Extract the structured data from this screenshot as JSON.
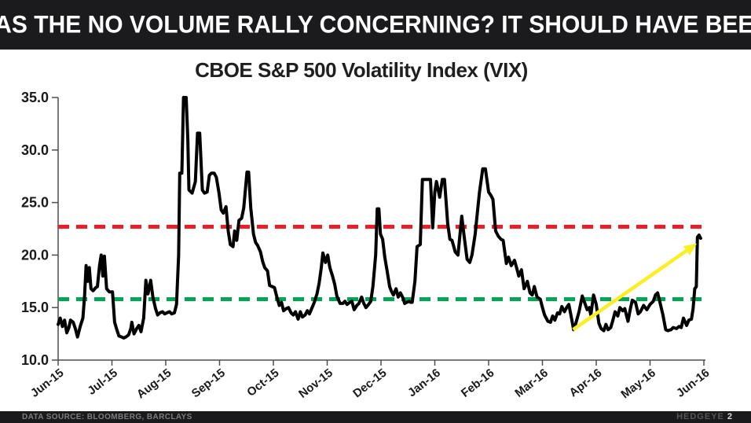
{
  "banner": {
    "title": "WAS THE NO VOLUME RALLY CONCERNING? IT SHOULD HAVE BEEN."
  },
  "footer": {
    "source": "DATA SOURCE: BLOOMBERG, BARCLAYS",
    "brand": "HEDGEYE",
    "page": "2"
  },
  "colors": {
    "banner_bg": "#1b1b1d",
    "line": "#000000",
    "upper_band": "#EC1C24",
    "lower_band": "#00A651",
    "arrow": "#FCEE21",
    "axis": "#4d4d4d",
    "label": "#1a1a1a"
  },
  "chart_data": {
    "type": "line",
    "title": "CBOE S&P 500 Volatility Index (VIX)",
    "xlabel": "",
    "ylabel": "",
    "x_categories": [
      "Jun-15",
      "Jul-15",
      "Aug-15",
      "Sep-15",
      "Oct-15",
      "Nov-15",
      "Dec-15",
      "Jan-16",
      "Feb-16",
      "Mar-16",
      "Apr-16",
      "May-16",
      "Jun-16"
    ],
    "ylim": [
      10.0,
      35.0
    ],
    "yticks": [
      10.0,
      15.0,
      20.0,
      25.0,
      30.0,
      35.0
    ],
    "grid": false,
    "legend": null,
    "thresholds": [
      {
        "name": "upper-risk-band",
        "value": 22.7,
        "style": "dashed",
        "color": "#EC1C24"
      },
      {
        "name": "lower-risk-band",
        "value": 15.8,
        "style": "dashed",
        "color": "#00A651"
      }
    ],
    "annotation_arrow": {
      "from": [
        9.57,
        12.9
      ],
      "to": [
        11.87,
        21.1
      ],
      "color": "#FCEE21"
    },
    "series": [
      {
        "name": "VIX",
        "color": "#000000",
        "points": [
          [
            0,
            13.4
          ],
          [
            0.04,
            14.0
          ],
          [
            0.08,
            13.2
          ],
          [
            0.12,
            13.8
          ],
          [
            0.16,
            12.6
          ],
          [
            0.2,
            13.1
          ],
          [
            0.23,
            13.8
          ],
          [
            0.28,
            13.6
          ],
          [
            0.32,
            13.0
          ],
          [
            0.36,
            12.2
          ],
          [
            0.41,
            13.2
          ],
          [
            0.46,
            14.0
          ],
          [
            0.49,
            16.0
          ],
          [
            0.52,
            19.0
          ],
          [
            0.55,
            17.5
          ],
          [
            0.58,
            18.8
          ],
          [
            0.61,
            16.8
          ],
          [
            0.65,
            16.6
          ],
          [
            0.7,
            16.9
          ],
          [
            0.73,
            17.0
          ],
          [
            0.77,
            19.0
          ],
          [
            0.8,
            20.0
          ],
          [
            0.83,
            18.0
          ],
          [
            0.86,
            19.9
          ],
          [
            0.9,
            16.8
          ],
          [
            0.95,
            16.5
          ],
          [
            1.01,
            16.5
          ],
          [
            1.05,
            13.6
          ],
          [
            1.09,
            12.9
          ],
          [
            1.13,
            12.3
          ],
          [
            1.18,
            12.2
          ],
          [
            1.22,
            12.1
          ],
          [
            1.26,
            12.2
          ],
          [
            1.31,
            12.4
          ],
          [
            1.35,
            13.0
          ],
          [
            1.37,
            13.6
          ],
          [
            1.41,
            12.5
          ],
          [
            1.46,
            13.0
          ],
          [
            1.5,
            13.3
          ],
          [
            1.54,
            12.7
          ],
          [
            1.59,
            14.0
          ],
          [
            1.63,
            17.6
          ],
          [
            1.67,
            16.3
          ],
          [
            1.72,
            17.6
          ],
          [
            1.76,
            16.0
          ],
          [
            1.81,
            14.9
          ],
          [
            1.85,
            14.3
          ],
          [
            1.89,
            14.5
          ],
          [
            1.94,
            14.6
          ],
          [
            1.98,
            14.4
          ],
          [
            2.02,
            14.5
          ],
          [
            2.07,
            14.6
          ],
          [
            2.11,
            14.4
          ],
          [
            2.16,
            14.5
          ],
          [
            2.2,
            15.3
          ],
          [
            2.24,
            20.0
          ],
          [
            2.26,
            27.8
          ],
          [
            2.3,
            27.8
          ],
          [
            2.33,
            35.0
          ],
          [
            2.38,
            35.0
          ],
          [
            2.41,
            31.0
          ],
          [
            2.43,
            26.2
          ],
          [
            2.49,
            25.9
          ],
          [
            2.55,
            27.0
          ],
          [
            2.59,
            31.6
          ],
          [
            2.63,
            31.6
          ],
          [
            2.68,
            26.2
          ],
          [
            2.72,
            25.9
          ],
          [
            2.77,
            26.0
          ],
          [
            2.81,
            27.6
          ],
          [
            2.85,
            27.8
          ],
          [
            2.9,
            27.8
          ],
          [
            2.94,
            27.4
          ],
          [
            2.99,
            25.9
          ],
          [
            3.03,
            24.3
          ],
          [
            3.07,
            24.0
          ],
          [
            3.12,
            24.6
          ],
          [
            3.16,
            22.3
          ],
          [
            3.2,
            21.0
          ],
          [
            3.25,
            20.8
          ],
          [
            3.28,
            22.3
          ],
          [
            3.32,
            21.4
          ],
          [
            3.36,
            23.3
          ],
          [
            3.41,
            23.5
          ],
          [
            3.45,
            24.5
          ],
          [
            3.51,
            27.9
          ],
          [
            3.54,
            27.9
          ],
          [
            3.58,
            24.5
          ],
          [
            3.63,
            22.0
          ],
          [
            3.67,
            21.2
          ],
          [
            3.71,
            20.9
          ],
          [
            3.76,
            20.3
          ],
          [
            3.8,
            19.4
          ],
          [
            3.84,
            18.8
          ],
          [
            3.89,
            18.5
          ],
          [
            3.93,
            17.1
          ],
          [
            3.98,
            17.0
          ],
          [
            4.02,
            16.9
          ],
          [
            4.06,
            16.1
          ],
          [
            4.11,
            15.2
          ],
          [
            4.15,
            15.5
          ],
          [
            4.19,
            14.7
          ],
          [
            4.24,
            14.9
          ],
          [
            4.28,
            15.0
          ],
          [
            4.33,
            14.5
          ],
          [
            4.37,
            14.3
          ],
          [
            4.41,
            14.6
          ],
          [
            4.46,
            13.9
          ],
          [
            4.5,
            14.6
          ],
          [
            4.54,
            14.1
          ],
          [
            4.59,
            14.3
          ],
          [
            4.63,
            14.7
          ],
          [
            4.67,
            14.4
          ],
          [
            4.72,
            15.0
          ],
          [
            4.76,
            15.5
          ],
          [
            4.81,
            16.3
          ],
          [
            4.85,
            17.3
          ],
          [
            4.89,
            18.8
          ],
          [
            4.92,
            20.2
          ],
          [
            4.97,
            19.3
          ],
          [
            5.01,
            20.0
          ],
          [
            5.05,
            18.8
          ],
          [
            5.1,
            18.0
          ],
          [
            5.14,
            17.2
          ],
          [
            5.18,
            16.1
          ],
          [
            5.24,
            15.4
          ],
          [
            5.29,
            15.4
          ],
          [
            5.33,
            15.6
          ],
          [
            5.37,
            15.3
          ],
          [
            5.42,
            15.5
          ],
          [
            5.46,
            15.6
          ],
          [
            5.5,
            14.8
          ],
          [
            5.55,
            15.2
          ],
          [
            5.59,
            15.4
          ],
          [
            5.64,
            16.0
          ],
          [
            5.68,
            15.4
          ],
          [
            5.72,
            15.0
          ],
          [
            5.77,
            15.3
          ],
          [
            5.81,
            15.6
          ],
          [
            5.85,
            17.0
          ],
          [
            5.9,
            20.0
          ],
          [
            5.93,
            24.4
          ],
          [
            5.96,
            24.4
          ],
          [
            5.99,
            22.0
          ],
          [
            6.03,
            21.5
          ],
          [
            6.07,
            19.8
          ],
          [
            6.12,
            18.3
          ],
          [
            6.16,
            17.0
          ],
          [
            6.19,
            16.6
          ],
          [
            6.23,
            16.2
          ],
          [
            6.28,
            16.8
          ],
          [
            6.32,
            16.0
          ],
          [
            6.36,
            16.4
          ],
          [
            6.41,
            15.9
          ],
          [
            6.44,
            15.4
          ],
          [
            6.48,
            15.5
          ],
          [
            6.52,
            15.6
          ],
          [
            6.55,
            15.5
          ],
          [
            6.58,
            15.5
          ],
          [
            6.63,
            17.5
          ],
          [
            6.67,
            20.8
          ],
          [
            6.73,
            21.0
          ],
          [
            6.77,
            27.2
          ],
          [
            6.84,
            27.2
          ],
          [
            6.92,
            27.2
          ],
          [
            6.96,
            22.6
          ],
          [
            7.0,
            26.0
          ],
          [
            7.03,
            27.0
          ],
          [
            7.09,
            25.5
          ],
          [
            7.14,
            27.2
          ],
          [
            7.18,
            27.2
          ],
          [
            7.24,
            23.0
          ],
          [
            7.28,
            21.5
          ],
          [
            7.32,
            21.4
          ],
          [
            7.38,
            20.3
          ],
          [
            7.43,
            20.0
          ],
          [
            7.5,
            23.7
          ],
          [
            7.54,
            22.0
          ],
          [
            7.6,
            19.6
          ],
          [
            7.65,
            19.3
          ],
          [
            7.69,
            20.0
          ],
          [
            7.75,
            22.0
          ],
          [
            7.79,
            24.0
          ],
          [
            7.83,
            26.0
          ],
          [
            7.89,
            28.2
          ],
          [
            7.94,
            28.2
          ],
          [
            8.0,
            26.0
          ],
          [
            8.04,
            25.7
          ],
          [
            8.08,
            25.3
          ],
          [
            8.13,
            22.3
          ],
          [
            8.18,
            21.8
          ],
          [
            8.23,
            21.5
          ],
          [
            8.27,
            21.4
          ],
          [
            8.33,
            19.2
          ],
          [
            8.37,
            19.8
          ],
          [
            8.42,
            19.0
          ],
          [
            8.48,
            19.5
          ],
          [
            8.52,
            18.8
          ],
          [
            8.56,
            18.0
          ],
          [
            8.61,
            18.6
          ],
          [
            8.66,
            16.8
          ],
          [
            8.72,
            17.5
          ],
          [
            8.77,
            16.4
          ],
          [
            8.81,
            16.2
          ],
          [
            8.85,
            17.0
          ],
          [
            8.9,
            16.0
          ],
          [
            8.96,
            15.8
          ],
          [
            9.0,
            15.0
          ],
          [
            9.04,
            14.3
          ],
          [
            9.1,
            13.7
          ],
          [
            9.15,
            13.6
          ],
          [
            9.19,
            14.2
          ],
          [
            9.23,
            13.8
          ],
          [
            9.28,
            14.5
          ],
          [
            9.32,
            14.4
          ],
          [
            9.36,
            15.1
          ],
          [
            9.41,
            14.6
          ],
          [
            9.45,
            15.0
          ],
          [
            9.49,
            15.3
          ],
          [
            9.54,
            14.0
          ],
          [
            9.58,
            12.9
          ],
          [
            9.62,
            13.5
          ],
          [
            9.68,
            14.6
          ],
          [
            9.74,
            16.1
          ],
          [
            9.79,
            15.4
          ],
          [
            9.83,
            14.8
          ],
          [
            9.87,
            15.0
          ],
          [
            9.9,
            14.3
          ],
          [
            9.95,
            16.2
          ],
          [
            10.0,
            15.3
          ],
          [
            10.05,
            13.5
          ],
          [
            10.09,
            13.0
          ],
          [
            10.14,
            12.8
          ],
          [
            10.18,
            13.4
          ],
          [
            10.22,
            12.9
          ],
          [
            10.27,
            13.1
          ],
          [
            10.31,
            13.8
          ],
          [
            10.35,
            14.6
          ],
          [
            10.4,
            14.2
          ],
          [
            10.44,
            15.0
          ],
          [
            10.49,
            14.7
          ],
          [
            10.53,
            14.9
          ],
          [
            10.59,
            13.7
          ],
          [
            10.63,
            14.8
          ],
          [
            10.67,
            15.7
          ],
          [
            10.73,
            15.5
          ],
          [
            10.78,
            14.4
          ],
          [
            10.82,
            14.6
          ],
          [
            10.88,
            15.2
          ],
          [
            10.94,
            14.8
          ],
          [
            11.0,
            15.3
          ],
          [
            11.06,
            15.6
          ],
          [
            11.1,
            16.2
          ],
          [
            11.14,
            16.4
          ],
          [
            11.18,
            15.6
          ],
          [
            11.24,
            14.3
          ],
          [
            11.29,
            12.9
          ],
          [
            11.33,
            12.8
          ],
          [
            11.39,
            12.9
          ],
          [
            11.43,
            13.1
          ],
          [
            11.49,
            13.0
          ],
          [
            11.54,
            13.2
          ],
          [
            11.58,
            13.1
          ],
          [
            11.62,
            14.0
          ],
          [
            11.68,
            13.3
          ],
          [
            11.72,
            13.8
          ],
          [
            11.77,
            13.9
          ],
          [
            11.8,
            14.9
          ],
          [
            11.83,
            16.8
          ],
          [
            11.86,
            17.0
          ],
          [
            11.88,
            21.7
          ],
          [
            11.91,
            21.9
          ],
          [
            11.94,
            21.6
          ]
        ]
      }
    ]
  }
}
